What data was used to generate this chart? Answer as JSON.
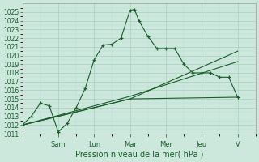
{
  "xlabel": "Pression niveau de la mer( hPa )",
  "bg_color": "#cce8dc",
  "grid_major_color": "#aacfbe",
  "grid_minor_color": "#bddece",
  "line_color": "#1a5c2a",
  "ylim": [
    1011,
    1026
  ],
  "yticks": [
    1011,
    1012,
    1013,
    1014,
    1015,
    1016,
    1017,
    1018,
    1019,
    1020,
    1021,
    1022,
    1023,
    1024,
    1025
  ],
  "day_labels": [
    "Sam",
    "Lun",
    "Mar",
    "Mer",
    "Jeu",
    "V"
  ],
  "day_positions": [
    2,
    4,
    6,
    8,
    10,
    12
  ],
  "xlim": [
    0,
    13
  ],
  "line1_x": [
    0,
    0.5,
    1,
    1.5,
    2,
    2.5,
    3,
    3.5,
    4,
    4.5,
    5,
    5.5,
    6,
    6.25,
    6.5,
    7,
    7.5,
    8,
    8.5,
    9,
    9.5,
    10,
    10.5,
    11,
    11.5,
    12
  ],
  "line1_y": [
    1012.0,
    1013.0,
    1014.5,
    1014.2,
    1011.2,
    1012.2,
    1014.0,
    1016.2,
    1019.5,
    1021.2,
    1021.3,
    1022.0,
    1025.2,
    1025.3,
    1024.0,
    1022.2,
    1020.8,
    1020.8,
    1020.8,
    1019.0,
    1018.0,
    1018.0,
    1018.0,
    1017.5,
    1017.5,
    1015.2
  ],
  "line2_x": [
    0,
    6,
    12
  ],
  "line2_y": [
    1012.0,
    1015.0,
    1020.5
  ],
  "line3_x": [
    0,
    6,
    12
  ],
  "line3_y": [
    1012.0,
    1015.3,
    1019.3
  ],
  "line4_x": [
    0,
    6,
    12
  ],
  "line4_y": [
    1012.0,
    1015.0,
    1015.2
  ],
  "xlabel_fontsize": 7,
  "ytick_fontsize": 5.5,
  "xtick_fontsize": 6
}
